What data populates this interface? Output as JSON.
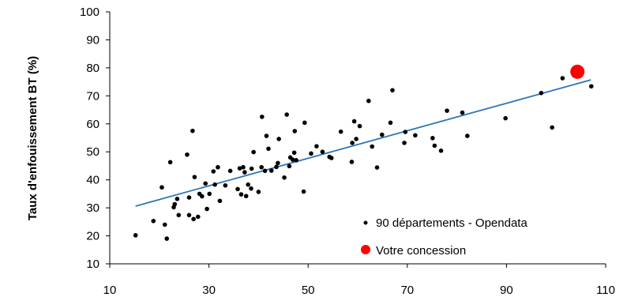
{
  "chart_data": {
    "type": "scatter",
    "ylabel": "Taux d'enfouissement BT (%)",
    "xlim": [
      10,
      110
    ],
    "ylim": [
      10,
      100
    ],
    "x_ticks": [
      10,
      30,
      50,
      70,
      90,
      110
    ],
    "y_ticks": [
      10,
      20,
      30,
      40,
      50,
      60,
      70,
      80,
      90,
      100
    ],
    "grid": false,
    "legend_position": "bottom-right",
    "series": [
      {
        "name": "90 départements - Opendata",
        "color": "#000000",
        "marker": "small-dot",
        "points": [
          [
            15.2,
            20.2
          ],
          [
            18.8,
            25.3
          ],
          [
            20.5,
            37.3
          ],
          [
            21.1,
            24.0
          ],
          [
            21.5,
            19.0
          ],
          [
            22.2,
            46.3
          ],
          [
            22.9,
            30.2
          ],
          [
            23.1,
            31.3
          ],
          [
            23.6,
            33.2
          ],
          [
            23.9,
            27.4
          ],
          [
            25.6,
            49.0
          ],
          [
            26.0,
            33.7
          ],
          [
            26.0,
            27.4
          ],
          [
            26.7,
            57.5
          ],
          [
            26.9,
            26.0
          ],
          [
            27.1,
            41.0
          ],
          [
            27.8,
            26.8
          ],
          [
            28.1,
            35.0
          ],
          [
            28.6,
            34.1
          ],
          [
            29.3,
            38.7
          ],
          [
            29.6,
            29.6
          ],
          [
            30.1,
            35.0
          ],
          [
            30.9,
            43.0
          ],
          [
            31.2,
            38.3
          ],
          [
            31.8,
            44.5
          ],
          [
            32.2,
            32.5
          ],
          [
            33.3,
            38.0
          ],
          [
            34.3,
            43.2
          ],
          [
            35.8,
            36.7
          ],
          [
            36.2,
            44.1
          ],
          [
            36.5,
            34.8
          ],
          [
            36.9,
            44.5
          ],
          [
            37.2,
            42.7
          ],
          [
            37.5,
            34.2
          ],
          [
            37.9,
            38.3
          ],
          [
            38.5,
            36.9
          ],
          [
            38.6,
            44.0
          ],
          [
            39.0,
            49.9
          ],
          [
            40.0,
            35.7
          ],
          [
            40.6,
            44.5
          ],
          [
            40.7,
            62.5
          ],
          [
            41.3,
            43.2
          ],
          [
            41.6,
            55.7
          ],
          [
            42.0,
            51.1
          ],
          [
            42.6,
            43.3
          ],
          [
            43.6,
            44.6
          ],
          [
            43.9,
            46.0
          ],
          [
            44.1,
            54.6
          ],
          [
            45.2,
            40.8
          ],
          [
            45.7,
            63.3
          ],
          [
            46.2,
            44.9
          ],
          [
            46.4,
            48.0
          ],
          [
            46.9,
            47.2
          ],
          [
            47.2,
            49.7
          ],
          [
            47.3,
            57.4
          ],
          [
            47.6,
            47.0
          ],
          [
            49.1,
            35.8
          ],
          [
            49.3,
            60.4
          ],
          [
            50.6,
            49.4
          ],
          [
            51.7,
            52.0
          ],
          [
            52.9,
            50.0
          ],
          [
            54.3,
            48.2
          ],
          [
            54.7,
            47.8
          ],
          [
            56.6,
            57.2
          ],
          [
            58.8,
            46.4
          ],
          [
            58.9,
            53.2
          ],
          [
            59.3,
            60.9
          ],
          [
            59.7,
            54.6
          ],
          [
            60.4,
            59.2
          ],
          [
            62.2,
            68.2
          ],
          [
            62.9,
            51.9
          ],
          [
            63.9,
            44.4
          ],
          [
            64.9,
            56.1
          ],
          [
            66.6,
            60.4
          ],
          [
            67.0,
            72.0
          ],
          [
            69.4,
            53.2
          ],
          [
            69.6,
            57.1
          ],
          [
            71.6,
            55.9
          ],
          [
            75.1,
            54.9
          ],
          [
            75.5,
            52.2
          ],
          [
            76.8,
            50.4
          ],
          [
            78.0,
            64.7
          ],
          [
            81.1,
            64.0
          ],
          [
            82.1,
            55.7
          ],
          [
            89.8,
            62.0
          ],
          [
            97.0,
            71.0
          ],
          [
            99.2,
            58.7
          ],
          [
            101.3,
            76.3
          ],
          [
            107.1,
            73.4
          ]
        ]
      },
      {
        "name": "Votre concession",
        "color": "#ff0000",
        "marker": "large-dot",
        "points": [
          [
            104.3,
            78.6
          ]
        ]
      }
    ],
    "trendline": {
      "color": "#2e75b6",
      "from": [
        15.2,
        30.6
      ],
      "to": [
        107.0,
        75.7
      ]
    }
  }
}
